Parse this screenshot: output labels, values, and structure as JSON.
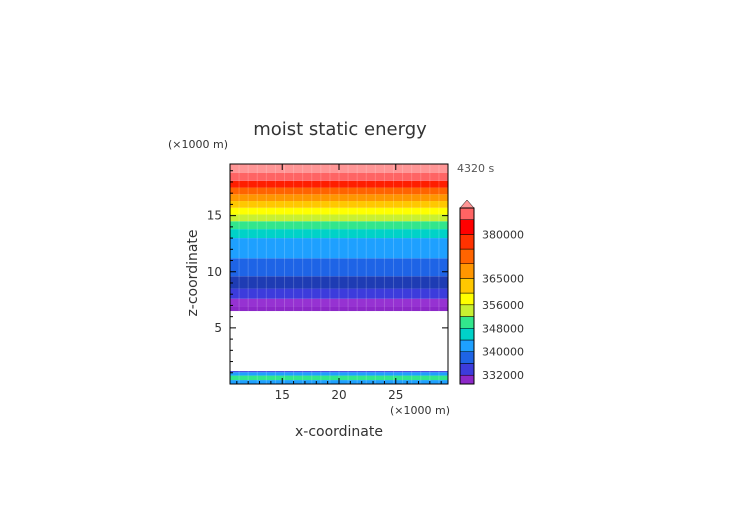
{
  "chart_data": {
    "type": "contour",
    "title": "moist static energy",
    "xlabel": "x-coordinate",
    "ylabel": "z-coordinate",
    "x_unit": "(×1000 m)",
    "y_unit": "(×1000 m)",
    "time_label": "4320 s",
    "xlim": [
      10.4,
      29.6
    ],
    "ylim": [
      0,
      19.6
    ],
    "x_ticks": [
      15,
      20,
      25
    ],
    "y_ticks": [
      5,
      10,
      15
    ],
    "x_tick_labels": [
      "15",
      "20",
      "25"
    ],
    "y_tick_labels": [
      "5",
      "10",
      "15"
    ],
    "colorbar": {
      "min": 329000,
      "max": 389000,
      "levels": [
        329000,
        332000,
        336000,
        340000,
        344000,
        348000,
        352000,
        356000,
        360000,
        365000,
        370000,
        375000,
        380000,
        385000,
        389000
      ],
      "colors": [
        "#8c28c8",
        "#3c3cdc",
        "#1e64e6",
        "#1ea0ff",
        "#00d2c8",
        "#32e68c",
        "#c8f032",
        "#ffff00",
        "#ffc800",
        "#ff9600",
        "#ff6400",
        "#ff3200",
        "#ff0000",
        "#ff6464",
        "#ff9696"
      ],
      "extend_top_color": "#ff9696",
      "tick_labels": [
        "380000",
        "365000",
        "356000",
        "348000",
        "340000",
        "332000"
      ],
      "tick_values": [
        380000,
        365000,
        356000,
        348000,
        340000,
        332000
      ]
    },
    "bands": [
      {
        "z0": 6.5,
        "z1": 6.9,
        "color": "#8c28c8"
      },
      {
        "z0": 6.9,
        "z1": 7.6,
        "color": "#9632d2"
      },
      {
        "z0": 7.6,
        "z1": 8.5,
        "color": "#3c3cdc"
      },
      {
        "z0": 8.5,
        "z1": 9.6,
        "color": "#1e3cb4"
      },
      {
        "z0": 9.6,
        "z1": 11.2,
        "color": "#1e64e6"
      },
      {
        "z0": 11.2,
        "z1": 13.0,
        "color": "#1ea0ff"
      },
      {
        "z0": 13.0,
        "z1": 13.8,
        "color": "#00d2c8"
      },
      {
        "z0": 13.8,
        "z1": 14.5,
        "color": "#32e68c"
      },
      {
        "z0": 14.5,
        "z1": 15.1,
        "color": "#c8f032"
      },
      {
        "z0": 15.1,
        "z1": 15.7,
        "color": "#ffff00"
      },
      {
        "z0": 15.7,
        "z1": 16.3,
        "color": "#ffc800"
      },
      {
        "z0": 16.3,
        "z1": 16.9,
        "color": "#ff9600"
      },
      {
        "z0": 16.9,
        "z1": 17.5,
        "color": "#ff6400"
      },
      {
        "z0": 17.5,
        "z1": 18.1,
        "color": "#ff1e00"
      },
      {
        "z0": 18.1,
        "z1": 18.8,
        "color": "#ff6464"
      },
      {
        "z0": 18.8,
        "z1": 19.6,
        "color": "#ff9696"
      }
    ],
    "boundary_layer": [
      {
        "z0": 0.0,
        "z1": 0.35,
        "color": "#1ea0ff"
      },
      {
        "z0": 0.35,
        "z1": 0.75,
        "color": "#32e68c"
      },
      {
        "z0": 0.75,
        "z1": 1.05,
        "color": "#1ea0ff"
      },
      {
        "z0": 1.05,
        "z1": 1.15,
        "color": "#3c3cdc"
      }
    ]
  }
}
